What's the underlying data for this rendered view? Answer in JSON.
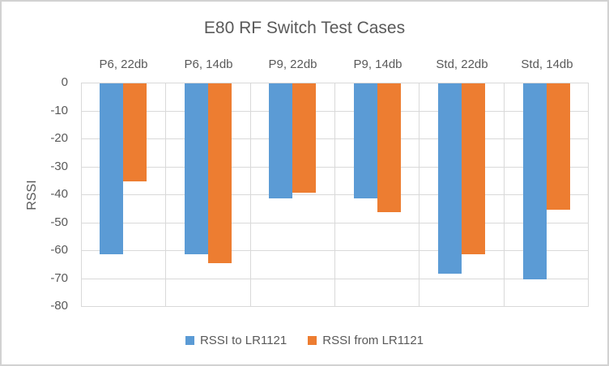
{
  "window": {
    "background": "#FFFFFF",
    "border_color": "#D2D2D2"
  },
  "chart_data": {
    "type": "bar",
    "title": "E80 RF Switch Test Cases",
    "categories": [
      "P6, 22db",
      "P6, 14db",
      "P9, 22db",
      "P9, 14db",
      "Std, 22db",
      "Std, 14db"
    ],
    "series": [
      {
        "name": "RSSI to LR1121",
        "color": "#5B9BD5",
        "values": [
          -61,
          -61,
          -41,
          -41,
          -68,
          -70
        ]
      },
      {
        "name": "RSSI from LR1121",
        "color": "#ED7D31",
        "values": [
          -35,
          -64,
          -39,
          -46,
          -61,
          -45
        ]
      }
    ],
    "xlabel": "",
    "ylabel": "RSSI",
    "ylim": [
      -80,
      0
    ],
    "yticks": [
      0,
      -10,
      -20,
      -30,
      -40,
      -50,
      -60,
      -70,
      -80
    ],
    "grid": true,
    "gridline_color": "#D9D9D9",
    "text_color": "#595959",
    "legend_position": "bottom",
    "bars_hang_from_zero": true
  }
}
